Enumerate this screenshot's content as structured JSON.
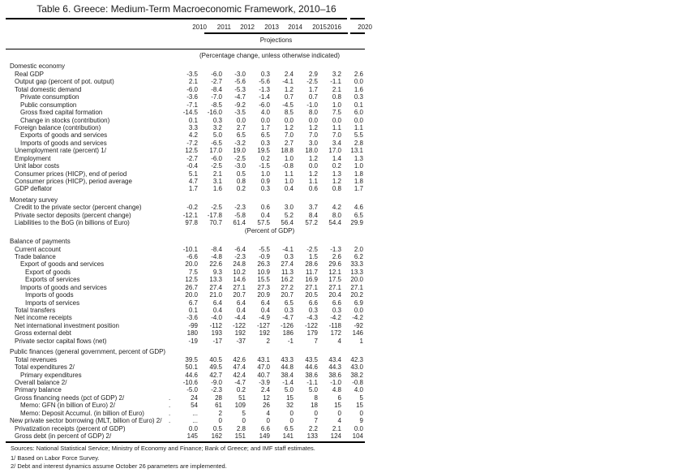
{
  "title": "Table 6. Greece: Medium-Term Macroeconomic Framework, 2010–16",
  "header": {
    "columns": [
      "2010",
      "2011",
      "2012",
      "2013",
      "2014",
      "2015",
      "2016",
      "2020"
    ],
    "projections_label": "Projections"
  },
  "colors": {
    "text": "#1c1c1c",
    "rule": "#000000",
    "background": "#ffffff"
  },
  "rows": [
    {
      "type": "unit",
      "label": "(Percentage change, unless otherwise indicated)"
    },
    {
      "type": "section",
      "label": "Domestic economy"
    },
    {
      "type": "row",
      "label": "Real GDP",
      "indent": 1,
      "values": [
        "-3.5",
        "-6.0",
        "-3.0",
        "0.3",
        "2.4",
        "2.9",
        "3.2",
        "2.6"
      ]
    },
    {
      "type": "row",
      "label": "Output gap (percent of pot. output)",
      "indent": 1,
      "values": [
        "2.1",
        "-2.7",
        "-5.6",
        "-5.6",
        "-4.1",
        "-2.5",
        "-1.1",
        "0.0"
      ]
    },
    {
      "type": "row",
      "label": "Total domestic demand",
      "indent": 1,
      "values": [
        "-6.0",
        "-8.4",
        "-5.3",
        "-1.3",
        "1.2",
        "1.7",
        "2.1",
        "1.6"
      ]
    },
    {
      "type": "row",
      "label": "Private consumption",
      "indent": 2,
      "values": [
        "-3.6",
        "-7.0",
        "-4.7",
        "-1.4",
        "0.7",
        "0.7",
        "0.8",
        "0.3"
      ]
    },
    {
      "type": "row",
      "label": "Public consumption",
      "indent": 2,
      "values": [
        "-7.1",
        "-8.5",
        "-9.2",
        "-6.0",
        "-4.5",
        "-1.0",
        "1.0",
        "0.1"
      ]
    },
    {
      "type": "row",
      "label": "Gross fixed capital formation",
      "indent": 2,
      "values": [
        "-14.5",
        "-16.0",
        "-3.5",
        "4.0",
        "8.5",
        "8.0",
        "7.5",
        "6.0"
      ]
    },
    {
      "type": "row",
      "label": "Change in stocks (contribution)",
      "indent": 2,
      "values": [
        "0.1",
        "0.3",
        "0.0",
        "0.0",
        "0.0",
        "0.0",
        "0.0",
        "0.0"
      ]
    },
    {
      "type": "row",
      "label": "Foreign balance (contribution)",
      "indent": 1,
      "values": [
        "3.3",
        "3.2",
        "2.7",
        "1.7",
        "1.2",
        "1.2",
        "1.1",
        "1.1"
      ]
    },
    {
      "type": "row",
      "label": "Exports of goods and services",
      "indent": 2,
      "values": [
        "4.2",
        "5.0",
        "6.5",
        "6.5",
        "7.0",
        "7.0",
        "7.0",
        "5.5"
      ]
    },
    {
      "type": "row",
      "label": "Imports of goods and services",
      "indent": 2,
      "values": [
        "-7.2",
        "-6.5",
        "-3.2",
        "0.3",
        "2.7",
        "3.0",
        "3.4",
        "2.8"
      ]
    },
    {
      "type": "row",
      "label": "Unemployment rate (percent) 1/",
      "indent": 1,
      "values": [
        "12.5",
        "17.0",
        "19.0",
        "19.5",
        "18.8",
        "18.0",
        "17.0",
        "13.1"
      ]
    },
    {
      "type": "row",
      "label": "Employment",
      "indent": 1,
      "values": [
        "-2.7",
        "-6.0",
        "-2.5",
        "0.2",
        "1.0",
        "1.2",
        "1.4",
        "1.3"
      ]
    },
    {
      "type": "row",
      "label": "Unit labor costs",
      "indent": 1,
      "values": [
        "-0.4",
        "-2.5",
        "-3.0",
        "-1.5",
        "-0.8",
        "0.0",
        "0.2",
        "1.0"
      ]
    },
    {
      "type": "row",
      "label": "Consumer prices (HICP), end of period",
      "indent": 1,
      "values": [
        "5.1",
        "2.1",
        "0.5",
        "1.0",
        "1.1",
        "1.2",
        "1.3",
        "1.8"
      ]
    },
    {
      "type": "row",
      "label": "Consumer prices (HICP), period average",
      "indent": 1,
      "values": [
        "4.7",
        "3.1",
        "0.8",
        "0.9",
        "1.0",
        "1.1",
        "1.2",
        "1.8"
      ]
    },
    {
      "type": "row",
      "label": "GDP deflator",
      "indent": 1,
      "values": [
        "1.7",
        "1.6",
        "0.2",
        "0.3",
        "0.4",
        "0.6",
        "0.8",
        "1.7"
      ]
    },
    {
      "type": "section",
      "label": "Monetary survey"
    },
    {
      "type": "row",
      "label": "Credit to the private sector (percent change)",
      "indent": 1,
      "values": [
        "-0.2",
        "-2.5",
        "-2.3",
        "0.6",
        "3.0",
        "3.7",
        "4.2",
        "4.6"
      ]
    },
    {
      "type": "row",
      "label": "Private sector deposits (percent change)",
      "indent": 1,
      "values": [
        "-12.1",
        "-17.8",
        "-5.8",
        "0.4",
        "5.2",
        "8.4",
        "8.0",
        "6.5"
      ]
    },
    {
      "type": "row",
      "label": "Liabilities to the BoG (in billions of Euro)",
      "indent": 1,
      "values": [
        "97.8",
        "70.7",
        "61.4",
        "57.5",
        "56.4",
        "57.2",
        "54.4",
        "29.9"
      ]
    },
    {
      "type": "unit",
      "label": "(Percent of GDP)"
    },
    {
      "type": "section",
      "label": "Balance of payments"
    },
    {
      "type": "row",
      "label": "Current account",
      "indent": 1,
      "values": [
        "-10.1",
        "-8.4",
        "-6.4",
        "-5.5",
        "-4.1",
        "-2.5",
        "-1.3",
        "2.0"
      ]
    },
    {
      "type": "row",
      "label": "Trade balance",
      "indent": 1,
      "values": [
        "-6.6",
        "-4.8",
        "-2.3",
        "-0.9",
        "0.3",
        "1.5",
        "2.6",
        "6.2"
      ]
    },
    {
      "type": "row",
      "label": "Export of goods and services",
      "indent": 2,
      "values": [
        "20.0",
        "22.6",
        "24.8",
        "26.3",
        "27.4",
        "28.6",
        "29.6",
        "33.3"
      ]
    },
    {
      "type": "row",
      "label": "Export of goods",
      "indent": 3,
      "values": [
        "7.5",
        "9.3",
        "10.2",
        "10.9",
        "11.3",
        "11.7",
        "12.1",
        "13.3"
      ]
    },
    {
      "type": "row",
      "label": "Exports of services",
      "indent": 3,
      "values": [
        "12.5",
        "13.3",
        "14.6",
        "15.5",
        "16.2",
        "16.9",
        "17.5",
        "20.0"
      ]
    },
    {
      "type": "row",
      "label": "Imports of goods and services",
      "indent": 2,
      "values": [
        "26.7",
        "27.4",
        "27.1",
        "27.3",
        "27.2",
        "27.1",
        "27.1",
        "27.1"
      ]
    },
    {
      "type": "row",
      "label": "Imports of goods",
      "indent": 3,
      "values": [
        "20.0",
        "21.0",
        "20.7",
        "20.9",
        "20.7",
        "20.5",
        "20.4",
        "20.2"
      ]
    },
    {
      "type": "row",
      "label": "Imports of services",
      "indent": 3,
      "values": [
        "6.7",
        "6.4",
        "6.4",
        "6.4",
        "6.5",
        "6.6",
        "6.6",
        "6.9"
      ]
    },
    {
      "type": "row",
      "label": "Total transfers",
      "indent": 1,
      "values": [
        "0.1",
        "0.4",
        "0.4",
        "0.4",
        "0.3",
        "0.3",
        "0.3",
        "0.0"
      ]
    },
    {
      "type": "row",
      "label": "Net income receipts",
      "indent": 1,
      "values": [
        "-3.6",
        "-4.0",
        "-4.4",
        "-4.9",
        "-4.7",
        "-4.3",
        "-4.2",
        "-4.2"
      ]
    },
    {
      "type": "row",
      "label": "Net international investment position",
      "indent": 1,
      "values": [
        "-99",
        "-112",
        "-122",
        "-127",
        "-126",
        "-122",
        "-118",
        "-92"
      ]
    },
    {
      "type": "row",
      "label": "Gross external debt",
      "indent": 1,
      "values": [
        "180",
        "193",
        "192",
        "192",
        "186",
        "179",
        "172",
        "146"
      ]
    },
    {
      "type": "row",
      "label": "Private sector capital flows (net)",
      "indent": 1,
      "values": [
        "-19",
        "-17",
        "-37",
        "2",
        "-1",
        "7",
        "4",
        "1"
      ]
    },
    {
      "type": "section",
      "label": "Public finances (general government, percent of GDP)"
    },
    {
      "type": "row",
      "label": "Total revenues",
      "indent": 1,
      "values": [
        "39.5",
        "40.5",
        "42.6",
        "43.1",
        "43.3",
        "43.5",
        "43.4",
        "42.3"
      ]
    },
    {
      "type": "row",
      "label": "Total expenditures 2/",
      "indent": 1,
      "values": [
        "50.1",
        "49.5",
        "47.4",
        "47.0",
        "44.8",
        "44.6",
        "44.3",
        "43.0"
      ]
    },
    {
      "type": "row",
      "label": "Primary expenditures",
      "indent": 2,
      "values": [
        "44.6",
        "42.7",
        "42.4",
        "40.7",
        "38.4",
        "38.6",
        "38.6",
        "38.2"
      ]
    },
    {
      "type": "row",
      "label": "Overall balance 2/",
      "indent": 1,
      "values": [
        "-10.6",
        "-9.0",
        "-4.7",
        "-3.9",
        "-1.4",
        "-1.1",
        "-1.0",
        "-0.8"
      ]
    },
    {
      "type": "row",
      "label": "Primary balance",
      "indent": 1,
      "values": [
        "-5.0",
        "-2.3",
        "0.2",
        "2.4",
        "5.0",
        "5.0",
        "4.8",
        "4.0"
      ]
    },
    {
      "type": "row",
      "label": "Gross financing needs (pct of GDP) 2/",
      "indent": 1,
      "dot": true,
      "values": [
        "24",
        "28",
        "51",
        "12",
        "15",
        "8",
        "6",
        "5"
      ]
    },
    {
      "type": "row",
      "label": "Memo: GFN (in billion of Euro) 2/",
      "indent": 2,
      "dot": true,
      "values": [
        "54",
        "61",
        "109",
        "26",
        "32",
        "18",
        "15",
        "15"
      ]
    },
    {
      "type": "row",
      "label": "Memo: Deposit Accumul. (in billion of Euro)",
      "indent": 2,
      "dot": true,
      "values": [
        "...",
        "2",
        "5",
        "4",
        "0",
        "0",
        "0",
        "0"
      ]
    },
    {
      "type": "row",
      "label": "New private sector borrowing (MLT, billion of Euro) 2/",
      "indent": 0,
      "dot": true,
      "values": [
        "...",
        "0",
        "0",
        "0",
        "0",
        "7",
        "4",
        "9"
      ]
    },
    {
      "type": "row",
      "label": "Privatization receipts (percent of GDP)",
      "indent": 1,
      "values": [
        "0.0",
        "0.5",
        "2.8",
        "6.6",
        "6.5",
        "2.2",
        "2.1",
        "0.0"
      ]
    },
    {
      "type": "row",
      "label": "Gross debt (in percent of GDP) 2/",
      "indent": 1,
      "values": [
        "145",
        "162",
        "151",
        "149",
        "141",
        "133",
        "124",
        "104"
      ]
    }
  ],
  "footer": {
    "sources": "Sources: National Statistical Service; Ministry of Economy and Finance; Bank of Greece; and IMF staff estimates.",
    "footnote1": "1/ Based on Labor Force Survey.",
    "footnote2": "2/ Debt and interest dynamics assume October 26 parameters are implemented."
  }
}
